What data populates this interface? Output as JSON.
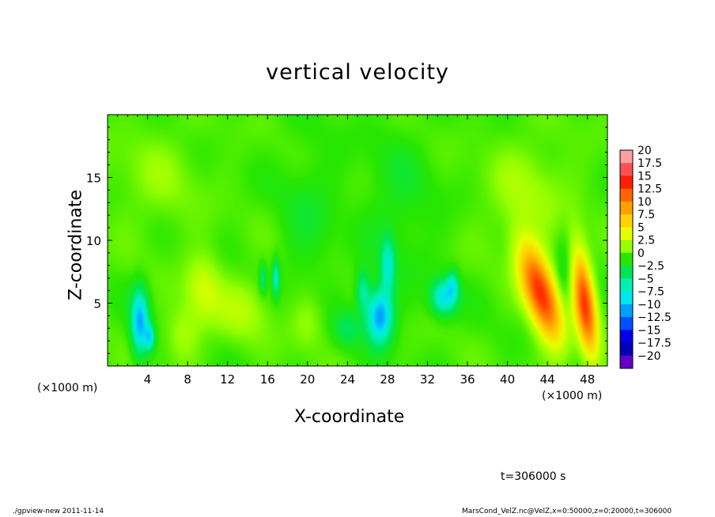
{
  "chart_data": {
    "type": "heatmap",
    "title": "vertical velocity",
    "xlabel": "X-coordinate",
    "ylabel": "Z-coordinate",
    "x_unit": "(×1000 m)",
    "x_range": [
      0,
      50
    ],
    "z_range": [
      0,
      20
    ],
    "x_ticks": [
      "4",
      "8",
      "12",
      "16",
      "20",
      "24",
      "28",
      "32",
      "36",
      "40",
      "44",
      "48"
    ],
    "x_tick_values": [
      4,
      8,
      12,
      16,
      20,
      24,
      28,
      32,
      36,
      40,
      44,
      48
    ],
    "y_ticks": [
      "5",
      "10",
      "15"
    ],
    "y_tick_values": [
      5,
      10,
      15
    ],
    "colorbar_labels": [
      "20",
      "17.5",
      "15",
      "12.5",
      "10",
      "7.5",
      "5",
      "2.5",
      "0",
      "−2.5",
      "−5",
      "−7.5",
      "−10",
      "−12.5",
      "−15",
      "−17.5",
      "−20"
    ],
    "colorbar_values": [
      20,
      17.5,
      15,
      12.5,
      10,
      7.5,
      5,
      2.5,
      0,
      -2.5,
      -5,
      -7.5,
      -10,
      -12.5,
      -15,
      -17.5,
      -20
    ],
    "colorbar_colors": [
      "#ffa0a0",
      "#ff5050",
      "#ff1e00",
      "#ff6400",
      "#ffa000",
      "#ffd200",
      "#e6ff00",
      "#96ff00",
      "#28e600",
      "#00e650",
      "#00f0b4",
      "#00e6f0",
      "#00a0ff",
      "#0050ff",
      "#0000e6",
      "#0000b4",
      "#6400c8"
    ],
    "features": [
      {
        "x": 3.2,
        "z": 3.5,
        "sx": 0.6,
        "sz": 1.8,
        "w": -10
      },
      {
        "x": 4.2,
        "z": 2.3,
        "sx": 0.35,
        "sz": 0.7,
        "w": -7
      },
      {
        "x": 9.5,
        "z": 6.2,
        "sx": 1.3,
        "sz": 2.0,
        "w": 3.5
      },
      {
        "x": 7.5,
        "z": 2.5,
        "sx": 1.2,
        "sz": 1.5,
        "w": 2.5
      },
      {
        "x": 16.8,
        "z": 7.0,
        "sx": 0.25,
        "sz": 1.0,
        "w": -6
      },
      {
        "x": 15.5,
        "z": 7.0,
        "sx": 0.25,
        "sz": 0.8,
        "w": -4
      },
      {
        "x": 13.5,
        "z": 4.5,
        "sx": 2.0,
        "sz": 1.8,
        "w": 2.5
      },
      {
        "x": 20.0,
        "z": 3.5,
        "sx": 1.2,
        "sz": 1.5,
        "w": 2.0
      },
      {
        "x": 27.2,
        "z": 4.0,
        "sx": 0.9,
        "sz": 1.5,
        "w": -11
      },
      {
        "x": 28.0,
        "z": 8.0,
        "sx": 0.5,
        "sz": 1.5,
        "w": -6
      },
      {
        "x": 25.5,
        "z": 6.0,
        "sx": 0.5,
        "sz": 1.2,
        "w": -5
      },
      {
        "x": 24.0,
        "z": 3.0,
        "sx": 1.0,
        "sz": 1.0,
        "w": -3
      },
      {
        "x": 33.6,
        "z": 5.5,
        "sx": 0.9,
        "sz": 1.0,
        "w": -8
      },
      {
        "x": 34.5,
        "z": 6.5,
        "sx": 0.4,
        "sz": 0.8,
        "w": -5
      },
      {
        "x": 43.3,
        "z": 5.8,
        "sx": 1.2,
        "sz": 2.8,
        "w": 14,
        "tilt": -0.35
      },
      {
        "x": 47.7,
        "z": 5.0,
        "sx": 0.75,
        "sz": 3.0,
        "w": 13,
        "tilt": -0.15
      },
      {
        "x": 45.6,
        "z": 7.0,
        "sx": 0.6,
        "sz": 2.5,
        "w": -2
      },
      {
        "x": 42.0,
        "z": 14.0,
        "sx": 3.0,
        "sz": 3.0,
        "w": 2
      },
      {
        "x": 5.0,
        "z": 15.0,
        "sx": 3.0,
        "sz": 3.0,
        "w": 1.5
      },
      {
        "x": 20.0,
        "z": 12.0,
        "sx": 2.0,
        "sz": 4.0,
        "w": -1.5
      },
      {
        "x": 29.0,
        "z": 13.0,
        "sx": 2.5,
        "sz": 4.0,
        "w": -1.5
      }
    ]
  },
  "annotations": {
    "time_label": "t=306000 s",
    "footer_left": "./gpview-new  2011-11-14",
    "footer_right": "MarsCond_VelZ.nc@VelZ,x=0:50000,z=0:20000,t=306000"
  }
}
